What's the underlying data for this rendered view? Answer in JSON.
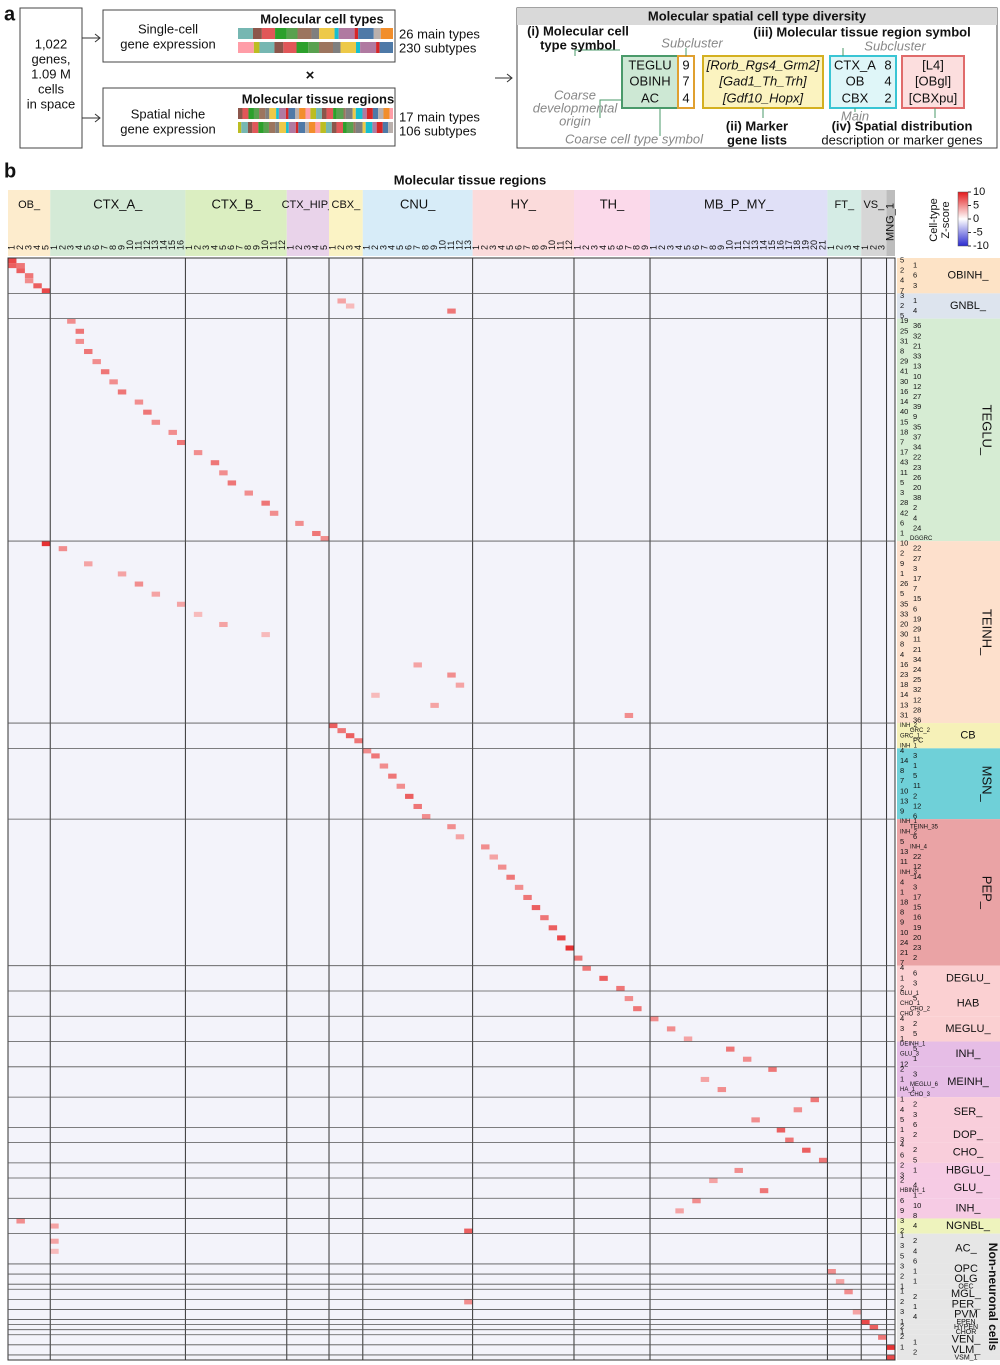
{
  "panel_a": {
    "label": "a",
    "input": [
      "1,022",
      "genes,",
      "1.09 M",
      "cells",
      "in space"
    ],
    "cell_types": {
      "source": [
        "Single-cell",
        "gene expression"
      ],
      "title": "Molecular cell types",
      "main": "26 main types",
      "sub": "230 subtypes"
    },
    "cross": "×",
    "regions": {
      "source": [
        "Spatial niche",
        "gene expression"
      ],
      "title": "Molecular tissue regions",
      "main": "17 main types",
      "sub": "106 subtypes"
    },
    "diversity": {
      "title": "Molecular spatial cell type diversity",
      "cell_symbol_label": [
        "(i) Molecular cell",
        "type symbol"
      ],
      "subcluster_left": "Subcluster",
      "region_symbol_label": "(iii) Molecular tissue region symbol",
      "subcluster_right": "Subcluster",
      "cell_symbols": [
        [
          "TEGLU",
          9
        ],
        [
          "OBINH",
          7
        ],
        [
          "AC",
          4
        ]
      ],
      "markers": [
        "[Rorb_Rgs4_Grm2]",
        "[Gad1_Th_Trh]",
        "[Gdf10_Hopx]"
      ],
      "region_symbols": [
        [
          "CTX_A",
          8
        ],
        [
          "OB",
          4
        ],
        [
          "CBX",
          2
        ]
      ],
      "region_descriptions": [
        "[L4]",
        "[OBgl]",
        "[CBXpu]"
      ],
      "origin": [
        "Coarse",
        "developmental",
        "origin"
      ],
      "coarse_symbol": "Coarse cell type symbol",
      "marker_label": [
        "(ii) Marker",
        "gene lists"
      ],
      "main": "Main",
      "spatial_label": [
        "(iv) Spatial distribution",
        "description or marker genes"
      ]
    }
  },
  "panel_b": {
    "label": "b",
    "title": "Molecular tissue regions",
    "colorbar": {
      "title": [
        "Cell-type",
        "Z-score"
      ],
      "lim": [
        -10,
        10
      ],
      "ticks": [
        10,
        5,
        0,
        -5,
        -10
      ]
    },
    "column_groups": [
      {
        "name": "OB_",
        "color": "#fdeccd",
        "ticks": [
          1,
          2,
          3,
          4,
          5
        ]
      },
      {
        "name": "CTX_A_",
        "color": "#d4ead6",
        "ticks": [
          1,
          2,
          3,
          4,
          5,
          6,
          7,
          8,
          9,
          10,
          11,
          12,
          13,
          14,
          15,
          16
        ]
      },
      {
        "name": "CTX_B_",
        "color": "#dbeec1",
        "ticks": [
          1,
          2,
          3,
          4,
          5,
          6,
          7,
          8,
          9,
          10,
          11,
          12
        ]
      },
      {
        "name": "CTX_HIP_",
        "color": "#e9d3ea",
        "ticks": [
          1,
          2,
          3,
          4,
          5
        ]
      },
      {
        "name": "CBX_",
        "color": "#fbf3c5",
        "ticks": [
          1,
          2,
          3,
          4
        ]
      },
      {
        "name": "CNU_",
        "color": "#d7ecf8",
        "ticks": [
          1,
          2,
          3,
          4,
          5,
          6,
          7,
          8,
          9,
          10,
          11,
          12,
          13
        ]
      },
      {
        "name": "HY_",
        "color": "#fbdbdb",
        "ticks": [
          1,
          2,
          3,
          4,
          5,
          6,
          7,
          8,
          9,
          10,
          11,
          12
        ]
      },
      {
        "name": "TH_",
        "color": "#fbd9ea",
        "ticks": [
          1,
          2,
          3,
          4,
          5,
          6,
          7,
          8,
          9
        ]
      },
      {
        "name": "MB_P_MY_",
        "color": "#e0e0f7",
        "ticks": [
          1,
          2,
          3,
          4,
          5,
          6,
          7,
          8,
          9,
          10,
          11,
          12,
          13,
          14,
          15,
          16,
          17,
          18,
          19,
          20,
          21
        ]
      },
      {
        "name": "FT_",
        "color": "#d5ece5",
        "ticks": [
          1,
          2,
          3,
          4
        ]
      },
      {
        "name": "VS_",
        "color": "#d6d6d6",
        "ticks": [
          1,
          2,
          3
        ]
      },
      {
        "name": "MNG_1",
        "color": "#bdbdbd",
        "ticks": [
          null
        ]
      }
    ],
    "row_groups": [
      {
        "name": "OBINH_",
        "color": "#fde3c6",
        "rows": [
          "5",
          "1",
          "2",
          "6",
          "4",
          "3",
          "7"
        ]
      },
      {
        "name": "GNBL_",
        "color": "#dde4ee",
        "rows": [
          "3",
          "1",
          "2",
          "4",
          "5"
        ]
      },
      {
        "name": "TEGLU_",
        "color": "#d6ecd3",
        "rows": [
          "19",
          "36",
          "25",
          "32",
          "31",
          "21",
          "8",
          "33",
          "29",
          "13",
          "41",
          "10",
          "30",
          "12",
          "16",
          "27",
          "14",
          "39",
          "40",
          "9",
          "15",
          "35",
          "18",
          "37",
          "7",
          "34",
          "17",
          "22",
          "43",
          "23",
          "11",
          "26",
          "5",
          "20",
          "3",
          "38",
          "28",
          "2",
          "42",
          "4",
          "6",
          "24",
          "1",
          "DGGRC"
        ]
      },
      {
        "name": "TEINH_",
        "color": "#fde0cc",
        "rows": [
          "10",
          "22",
          "2",
          "27",
          "9",
          "3",
          "1",
          "17",
          "26",
          "7",
          "5",
          "15",
          "35",
          "6",
          "33",
          "19",
          "20",
          "29",
          "30",
          "11",
          "8",
          "21",
          "4",
          "34",
          "16",
          "24",
          "23",
          "25",
          "18",
          "32",
          "14",
          "12",
          "13",
          "28",
          "31",
          "36"
        ]
      },
      {
        "name": "CB",
        "color": "#f6f1b8",
        "rows": [
          "INH_2",
          "GRC_2",
          "GRC_1",
          "PC",
          "INH_1"
        ]
      },
      {
        "name": "MSN_",
        "color": "#6fd0d8",
        "rows": [
          "4",
          "3",
          "14",
          "1",
          "8",
          "5",
          "7",
          "11",
          "10",
          "2",
          "13",
          "12",
          "9",
          "6"
        ]
      },
      {
        "name": "PEP_",
        "color": "#eaa3a5",
        "rows": [
          "INH_1",
          "TEINH_35",
          "INH_2",
          "6",
          "5",
          "INH_4",
          "13",
          "22",
          "11",
          "12",
          "INH_3",
          "14",
          "4",
          "3",
          "1",
          "17",
          "18",
          "15",
          "8",
          "16",
          "9",
          "19",
          "10",
          "20",
          "24",
          "23",
          "21",
          "2",
          "7"
        ]
      },
      {
        "name": "DEGLU_",
        "color": "#fbd0d2",
        "rows": [
          "4",
          "6",
          "1",
          "3",
          "2"
        ]
      },
      {
        "name": "HAB",
        "color": "#fbd0d2",
        "rows": [
          "GLU_1",
          "5",
          "CHO_1",
          "CHO_2",
          "CHO_3"
        ]
      },
      {
        "name": "MEGLU_",
        "color": "#fbd0d2",
        "rows": [
          "4",
          "2",
          "3",
          "5",
          "1"
        ]
      },
      {
        "name": "INH_",
        "color": "#e6bde6",
        "rows": [
          "DEINH_1",
          "5",
          "GLU_3",
          "1",
          "12"
        ]
      },
      {
        "name": "MEINH_",
        "color": "#e6bde6",
        "rows": [
          "2",
          "3",
          "1",
          "MEGLU_6",
          "HA_1",
          "CHO_3"
        ]
      },
      {
        "name": "SER_",
        "color": "#f9cedb",
        "rows": [
          "1",
          "2",
          "4",
          "3",
          "5",
          "6"
        ]
      },
      {
        "name": "DOP_",
        "color": "#f9cedb",
        "rows": [
          "1",
          "2",
          "3"
        ]
      },
      {
        "name": "CHO_",
        "color": "#f9cedb",
        "rows": [
          "4",
          "2",
          "6",
          "5"
        ]
      },
      {
        "name": "HBGLU_",
        "color": "#f6cbe4",
        "rows": [
          "2",
          "1",
          "3"
        ]
      },
      {
        "name": "GLU_",
        "color": "#f6cbe4",
        "rows": [
          "2",
          "4",
          "HBINH_1",
          "1"
        ]
      },
      {
        "name": "INH_",
        "color": "#f6cbe4",
        "rows": [
          "6",
          "10",
          "9",
          "8"
        ]
      },
      {
        "name": "NGNBL_",
        "color": "#eef3bd",
        "rows": [
          "3",
          "4",
          "2"
        ]
      },
      {
        "name": "AC_",
        "color": "#e6e6e6",
        "rows": [
          "1",
          "2",
          "3",
          "4",
          "5",
          "6"
        ]
      },
      {
        "name": "OPC",
        "color": "#e6e6e6",
        "rows": [
          "3",
          "1"
        ]
      },
      {
        "name": "OLG",
        "color": "#e6e6e6",
        "rows": [
          "2",
          "1"
        ]
      },
      {
        "name": "OEC",
        "color": "#e6e6e6",
        "rows": [
          "1"
        ]
      },
      {
        "name": "MGL_",
        "color": "#e6e6e6",
        "rows": [
          "1",
          "2"
        ]
      },
      {
        "name": "PER_",
        "color": "#e6e6e6",
        "rows": [
          "2",
          "1"
        ]
      },
      {
        "name": "PVM",
        "color": "#e6e6e6",
        "rows": [
          "3",
          "4"
        ]
      },
      {
        "name": "EPEN",
        "color": "#e6e6e6",
        "rows": [
          "1"
        ]
      },
      {
        "name": "HYPEN",
        "color": "#e6e6e6",
        "rows": [
          "2"
        ]
      },
      {
        "name": "CHOR",
        "color": "#e6e6e6",
        "rows": [
          "1"
        ]
      },
      {
        "name": "VEN_",
        "color": "#e6e6e6",
        "rows": [
          "2",
          "1"
        ]
      },
      {
        "name": "VLM_",
        "color": "#e6e6e6",
        "rows": [
          "1",
          "2"
        ]
      },
      {
        "name": "VSM_1",
        "color": "#e6e6e6",
        "rows": [
          null
        ]
      }
    ],
    "side_label": "Non-neuronal cells",
    "cells": [
      [
        0,
        0,
        8
      ],
      [
        1,
        0,
        7
      ],
      [
        1,
        1,
        6
      ],
      [
        2,
        1,
        7
      ],
      [
        3,
        2,
        6
      ],
      [
        4,
        2,
        5
      ],
      [
        5,
        3,
        7
      ],
      [
        6,
        4,
        8
      ],
      [
        8,
        39,
        4
      ],
      [
        10,
        52,
        6
      ],
      [
        9,
        40,
        3
      ],
      [
        12,
        7,
        5
      ],
      [
        14,
        8,
        6
      ],
      [
        16,
        8,
        5
      ],
      [
        18,
        9,
        6
      ],
      [
        20,
        10,
        5
      ],
      [
        22,
        11,
        6
      ],
      [
        24,
        12,
        5
      ],
      [
        26,
        13,
        6
      ],
      [
        28,
        15,
        5
      ],
      [
        30,
        16,
        6
      ],
      [
        32,
        17,
        5
      ],
      [
        34,
        19,
        5
      ],
      [
        36,
        20,
        6
      ],
      [
        38,
        22,
        5
      ],
      [
        40,
        24,
        6
      ],
      [
        42,
        25,
        5
      ],
      [
        44,
        26,
        6
      ],
      [
        46,
        28,
        5
      ],
      [
        48,
        30,
        6
      ],
      [
        50,
        31,
        5
      ],
      [
        52,
        34,
        5
      ],
      [
        54,
        36,
        6
      ],
      [
        55,
        37,
        5
      ],
      [
        56,
        4,
        9
      ],
      [
        57,
        6,
        5
      ],
      [
        60,
        9,
        4
      ],
      [
        62,
        13,
        4
      ],
      [
        64,
        15,
        5
      ],
      [
        66,
        17,
        4
      ],
      [
        68,
        20,
        4
      ],
      [
        70,
        22,
        3
      ],
      [
        72,
        25,
        4
      ],
      [
        74,
        30,
        3
      ],
      [
        80,
        48,
        4
      ],
      [
        82,
        52,
        5
      ],
      [
        84,
        53,
        4
      ],
      [
        86,
        43,
        3
      ],
      [
        88,
        50,
        4
      ],
      [
        90,
        73,
        5
      ],
      [
        92,
        38,
        7
      ],
      [
        93,
        39,
        6
      ],
      [
        94,
        40,
        7
      ],
      [
        95,
        41,
        6
      ],
      [
        97,
        42,
        5
      ],
      [
        98,
        43,
        6
      ],
      [
        100,
        44,
        5
      ],
      [
        102,
        45,
        6
      ],
      [
        104,
        46,
        5
      ],
      [
        106,
        47,
        7
      ],
      [
        108,
        48,
        6
      ],
      [
        110,
        49,
        5
      ],
      [
        112,
        52,
        5
      ],
      [
        114,
        53,
        4
      ],
      [
        116,
        56,
        5
      ],
      [
        118,
        57,
        4
      ],
      [
        120,
        58,
        5
      ],
      [
        122,
        59,
        6
      ],
      [
        124,
        60,
        5
      ],
      [
        126,
        61,
        6
      ],
      [
        128,
        62,
        7
      ],
      [
        130,
        63,
        6
      ],
      [
        132,
        64,
        7
      ],
      [
        134,
        65,
        8
      ],
      [
        136,
        66,
        9
      ],
      [
        138,
        67,
        6
      ],
      [
        140,
        68,
        6
      ],
      [
        142,
        70,
        7
      ],
      [
        144,
        72,
        6
      ],
      [
        146,
        73,
        5
      ],
      [
        148,
        74,
        6
      ],
      [
        150,
        76,
        5
      ],
      [
        152,
        78,
        5
      ],
      [
        154,
        80,
        4
      ],
      [
        156,
        85,
        6
      ],
      [
        158,
        87,
        5
      ],
      [
        160,
        90,
        6
      ],
      [
        162,
        82,
        4
      ],
      [
        164,
        84,
        5
      ],
      [
        166,
        95,
        6
      ],
      [
        168,
        93,
        5
      ],
      [
        170,
        88,
        5
      ],
      [
        172,
        91,
        7
      ],
      [
        174,
        92,
        6
      ],
      [
        176,
        94,
        7
      ],
      [
        178,
        96,
        6
      ],
      [
        180,
        86,
        5
      ],
      [
        182,
        83,
        4
      ],
      [
        184,
        89,
        6
      ],
      [
        186,
        81,
        5
      ],
      [
        188,
        79,
        4
      ],
      [
        190,
        1,
        5
      ],
      [
        191,
        5,
        4
      ],
      [
        192,
        54,
        7
      ],
      [
        194,
        5,
        4
      ],
      [
        196,
        5,
        3
      ],
      [
        200,
        97,
        5
      ],
      [
        202,
        98,
        4
      ],
      [
        204,
        99,
        5
      ],
      [
        206,
        54,
        5
      ],
      [
        208,
        100,
        4
      ],
      [
        210,
        101,
        8
      ],
      [
        211,
        102,
        7
      ],
      [
        213,
        103,
        6
      ],
      [
        215,
        104,
        9
      ],
      [
        217,
        104,
        8
      ]
    ]
  }
}
